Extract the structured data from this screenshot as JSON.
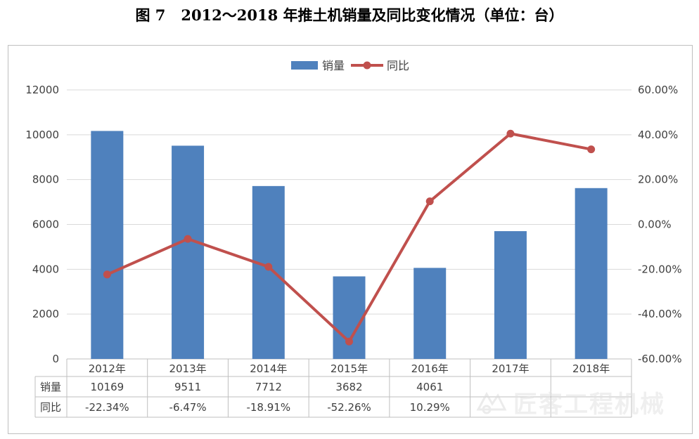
{
  "figure": {
    "label": "图 7",
    "title": "2012～2018 年推土机销量及同比变化情况（单位：台）"
  },
  "chart_data": {
    "type": "bar",
    "categories": [
      "2012年",
      "2013年",
      "2014年",
      "2015年",
      "2016年",
      "2017年",
      "2018年"
    ],
    "series": [
      {
        "name": "销量",
        "type": "bar",
        "axis": "left",
        "color": "#4f81bd",
        "values": [
          10169,
          9511,
          7712,
          3682,
          4061,
          5700,
          7620
        ]
      },
      {
        "name": "同比",
        "type": "line",
        "axis": "right",
        "color": "#c0504d",
        "values": [
          -22.34,
          -6.47,
          -18.91,
          -52.26,
          10.29,
          40.5,
          33.5
        ]
      }
    ],
    "y_left": {
      "ylim": [
        0,
        12000
      ],
      "ticks": [
        "0",
        "2000",
        "4000",
        "6000",
        "8000",
        "10000",
        "12000"
      ]
    },
    "y_right": {
      "ylim": [
        -60,
        60
      ],
      "ticks": [
        "-60.00%",
        "-40.00%",
        "-20.00%",
        "0.00%",
        "20.00%",
        "40.00%",
        "60.00%"
      ]
    },
    "legend": {
      "placement": "top-center",
      "items": [
        "销量",
        "同比"
      ]
    },
    "grid": true,
    "data_table": {
      "rows": [
        {
          "label": "销量",
          "cells": [
            "10169",
            "9511",
            "7712",
            "3682",
            "4061",
            "",
            ""
          ]
        },
        {
          "label": "同比",
          "cells": [
            "-22.34%",
            "-6.47%",
            "-18.91%",
            "-52.26%",
            "10.29%",
            "",
            ""
          ]
        }
      ]
    }
  },
  "watermark": {
    "text": "匠客工程机械",
    "icon": "logo-icon"
  }
}
